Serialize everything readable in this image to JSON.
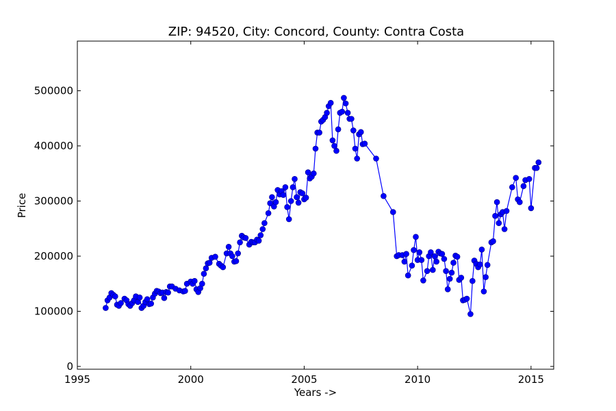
{
  "chart_data": {
    "type": "line",
    "title": "ZIP: 94520, City: Concord, County: Contra Costa",
    "xlabel": "Years ->",
    "ylabel": "Price",
    "xlim": [
      1995,
      2016
    ],
    "ylim": [
      -5000,
      590000
    ],
    "xticks": [
      1995,
      2000,
      2005,
      2010,
      2015
    ],
    "yticks": [
      0,
      100000,
      200000,
      300000,
      400000,
      500000
    ],
    "grid": false,
    "legend": "none",
    "series_color": "#0000ff",
    "marker": "circle",
    "series": [
      {
        "x": [
          1996.25,
          1996.33,
          1996.42,
          1996.5,
          1996.58,
          1996.67,
          1996.75,
          1996.83,
          1996.92,
          1997.08,
          1997.17,
          1997.25,
          1997.33,
          1997.42,
          1997.5,
          1997.58,
          1997.67,
          1997.75,
          1997.83,
          1997.92,
          1998.0,
          1998.08,
          1998.17,
          1998.25,
          1998.33,
          1998.42,
          1998.5,
          1998.58,
          1998.67,
          1998.75,
          1998.83,
          1998.92,
          1999.0,
          1999.08,
          1999.17,
          1999.33,
          1999.5,
          1999.67,
          1999.75,
          1999.83,
          2000.0,
          2000.08,
          2000.17,
          2000.25,
          2000.33,
          2000.42,
          2000.5,
          2000.58,
          2000.67,
          2000.75,
          2000.83,
          2000.92,
          2001.08,
          2001.25,
          2001.33,
          2001.42,
          2001.58,
          2001.67,
          2001.75,
          2001.83,
          2001.92,
          2002.0,
          2002.08,
          2002.17,
          2002.25,
          2002.33,
          2002.42,
          2002.58,
          2002.67,
          2002.75,
          2002.83,
          2002.92,
          2003.0,
          2003.08,
          2003.17,
          2003.25,
          2003.42,
          2003.5,
          2003.58,
          2003.67,
          2003.75,
          2003.83,
          2003.92,
          2004.0,
          2004.08,
          2004.17,
          2004.25,
          2004.33,
          2004.42,
          2004.5,
          2004.58,
          2004.67,
          2004.75,
          2004.83,
          2004.92,
          2005.0,
          2005.08,
          2005.17,
          2005.25,
          2005.33,
          2005.42,
          2005.5,
          2005.58,
          2005.67,
          2005.75,
          2005.83,
          2005.92,
          2006.0,
          2006.08,
          2006.17,
          2006.25,
          2006.33,
          2006.42,
          2006.5,
          2006.58,
          2006.67,
          2006.75,
          2006.83,
          2006.92,
          2007.0,
          2007.08,
          2007.17,
          2007.25,
          2007.33,
          2007.42,
          2007.5,
          2007.58,
          2007.67,
          2008.17,
          2008.5,
          2008.92,
          2009.08,
          2009.17,
          2009.33,
          2009.42,
          2009.5,
          2009.58,
          2009.75,
          2009.83,
          2009.92,
          2010.0,
          2010.08,
          2010.17,
          2010.25,
          2010.42,
          2010.5,
          2010.58,
          2010.67,
          2010.75,
          2010.83,
          2010.92,
          2011.0,
          2011.08,
          2011.17,
          2011.25,
          2011.33,
          2011.42,
          2011.5,
          2011.58,
          2011.67,
          2011.75,
          2011.83,
          2011.92,
          2012.0,
          2012.08,
          2012.17,
          2012.33,
          2012.42,
          2012.5,
          2012.58,
          2012.67,
          2012.75,
          2012.83,
          2012.92,
          2013.0,
          2013.08,
          2013.25,
          2013.33,
          2013.42,
          2013.5,
          2013.58,
          2013.67,
          2013.75,
          2013.83,
          2013.92,
          2014.17,
          2014.33,
          2014.42,
          2014.5,
          2014.67,
          2014.75,
          2014.92,
          2015.0,
          2015.17,
          2015.25,
          2015.33
        ],
        "y": [
          106000,
          120000,
          125000,
          133000,
          130000,
          127000,
          112000,
          110000,
          115000,
          123000,
          120000,
          113000,
          110000,
          115000,
          120000,
          127000,
          117000,
          125000,
          106000,
          110000,
          117000,
          122000,
          113000,
          114000,
          125000,
          132000,
          137000,
          136000,
          133000,
          134000,
          124000,
          135000,
          134000,
          145000,
          145000,
          141000,
          138000,
          136000,
          137000,
          150000,
          154000,
          150000,
          155000,
          140000,
          135000,
          142000,
          150000,
          168000,
          178000,
          187000,
          188000,
          197000,
          199000,
          186000,
          183000,
          180000,
          205000,
          217000,
          205000,
          200000,
          190000,
          191000,
          205000,
          225000,
          237000,
          234000,
          233000,
          221000,
          226000,
          225000,
          225000,
          230000,
          228000,
          238000,
          249000,
          260000,
          278000,
          296000,
          307000,
          290000,
          298000,
          320000,
          312000,
          318000,
          311000,
          325000,
          289000,
          267000,
          300000,
          325000,
          340000,
          307000,
          297000,
          316000,
          314000,
          303000,
          306000,
          352000,
          341000,
          344000,
          350000,
          395000,
          424000,
          424000,
          444000,
          447000,
          452000,
          460000,
          472000,
          478000,
          410000,
          400000,
          391000,
          430000,
          460000,
          462000,
          487000,
          477000,
          460000,
          449000,
          449000,
          428000,
          395000,
          377000,
          421000,
          425000,
          403000,
          404000,
          377000,
          309000,
          280000,
          200000,
          202000,
          202000,
          190000,
          204000,
          165000,
          183000,
          211000,
          235000,
          193000,
          207000,
          193000,
          156000,
          173000,
          200000,
          207000,
          175000,
          200000,
          190000,
          208000,
          205000,
          204000,
          195000,
          173000,
          140000,
          159000,
          170000,
          188000,
          201000,
          199000,
          157000,
          161000,
          120000,
          121000,
          123000,
          95000,
          155000,
          192000,
          186000,
          180000,
          185000,
          212000,
          136000,
          162000,
          184000,
          225000,
          227000,
          273000,
          298000,
          260000,
          276000,
          280000,
          249000,
          282000,
          325000,
          342000,
          303000,
          298000,
          327000,
          338000,
          340000,
          287000,
          360000,
          360000,
          370000
        ]
      }
    ]
  }
}
